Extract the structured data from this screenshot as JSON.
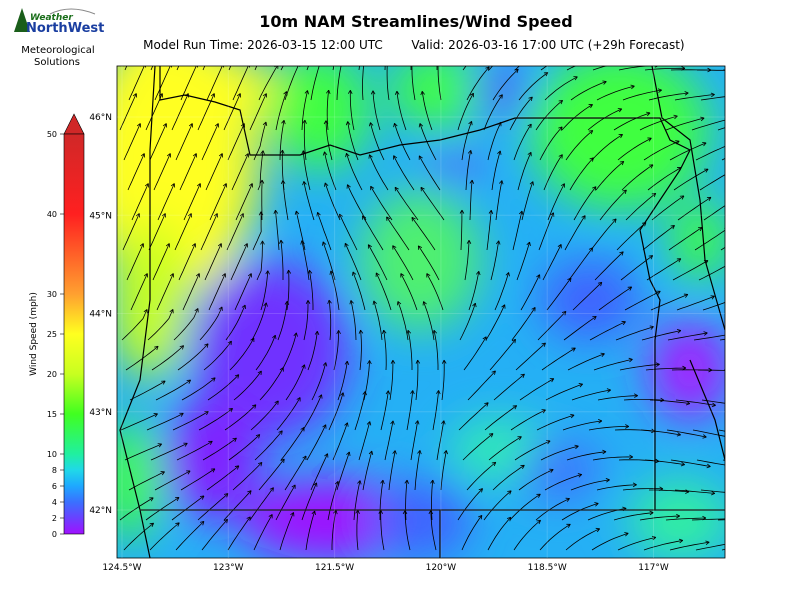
{
  "header": {
    "title": "10m NAM Streamlines/Wind Speed",
    "run_time": "Model Run Time: 2026-03-15 12:00 UTC",
    "valid": "Valid: 2026-03-16 17:00 UTC  (+29h Forecast)"
  },
  "logo": {
    "line1": "Weather",
    "line2": "NorthWest",
    "line3": "Meteorological",
    "line4": "Solutions"
  },
  "colorbar": {
    "label": "Wind Speed (mph)",
    "lim": [
      0,
      50
    ],
    "ticks": [
      0,
      2,
      4,
      6,
      8,
      10,
      15,
      20,
      25,
      30,
      40,
      50
    ]
  },
  "map": {
    "lat_ticks": [
      {
        "value": 46,
        "label": "46°N"
      },
      {
        "value": 45,
        "label": "45°N"
      },
      {
        "value": 44,
        "label": "44°N"
      },
      {
        "value": 43,
        "label": "43°N"
      },
      {
        "value": 42,
        "label": "42°N"
      }
    ],
    "lon_ticks": [
      {
        "value": 124.5,
        "label": "124.5°W"
      },
      {
        "value": 123,
        "label": "123°W"
      },
      {
        "value": 121.5,
        "label": "121.5°W"
      },
      {
        "value": 120,
        "label": "120°W"
      },
      {
        "value": 118.5,
        "label": "118.5°W"
      },
      {
        "value": 117,
        "label": "117°W"
      }
    ]
  }
}
